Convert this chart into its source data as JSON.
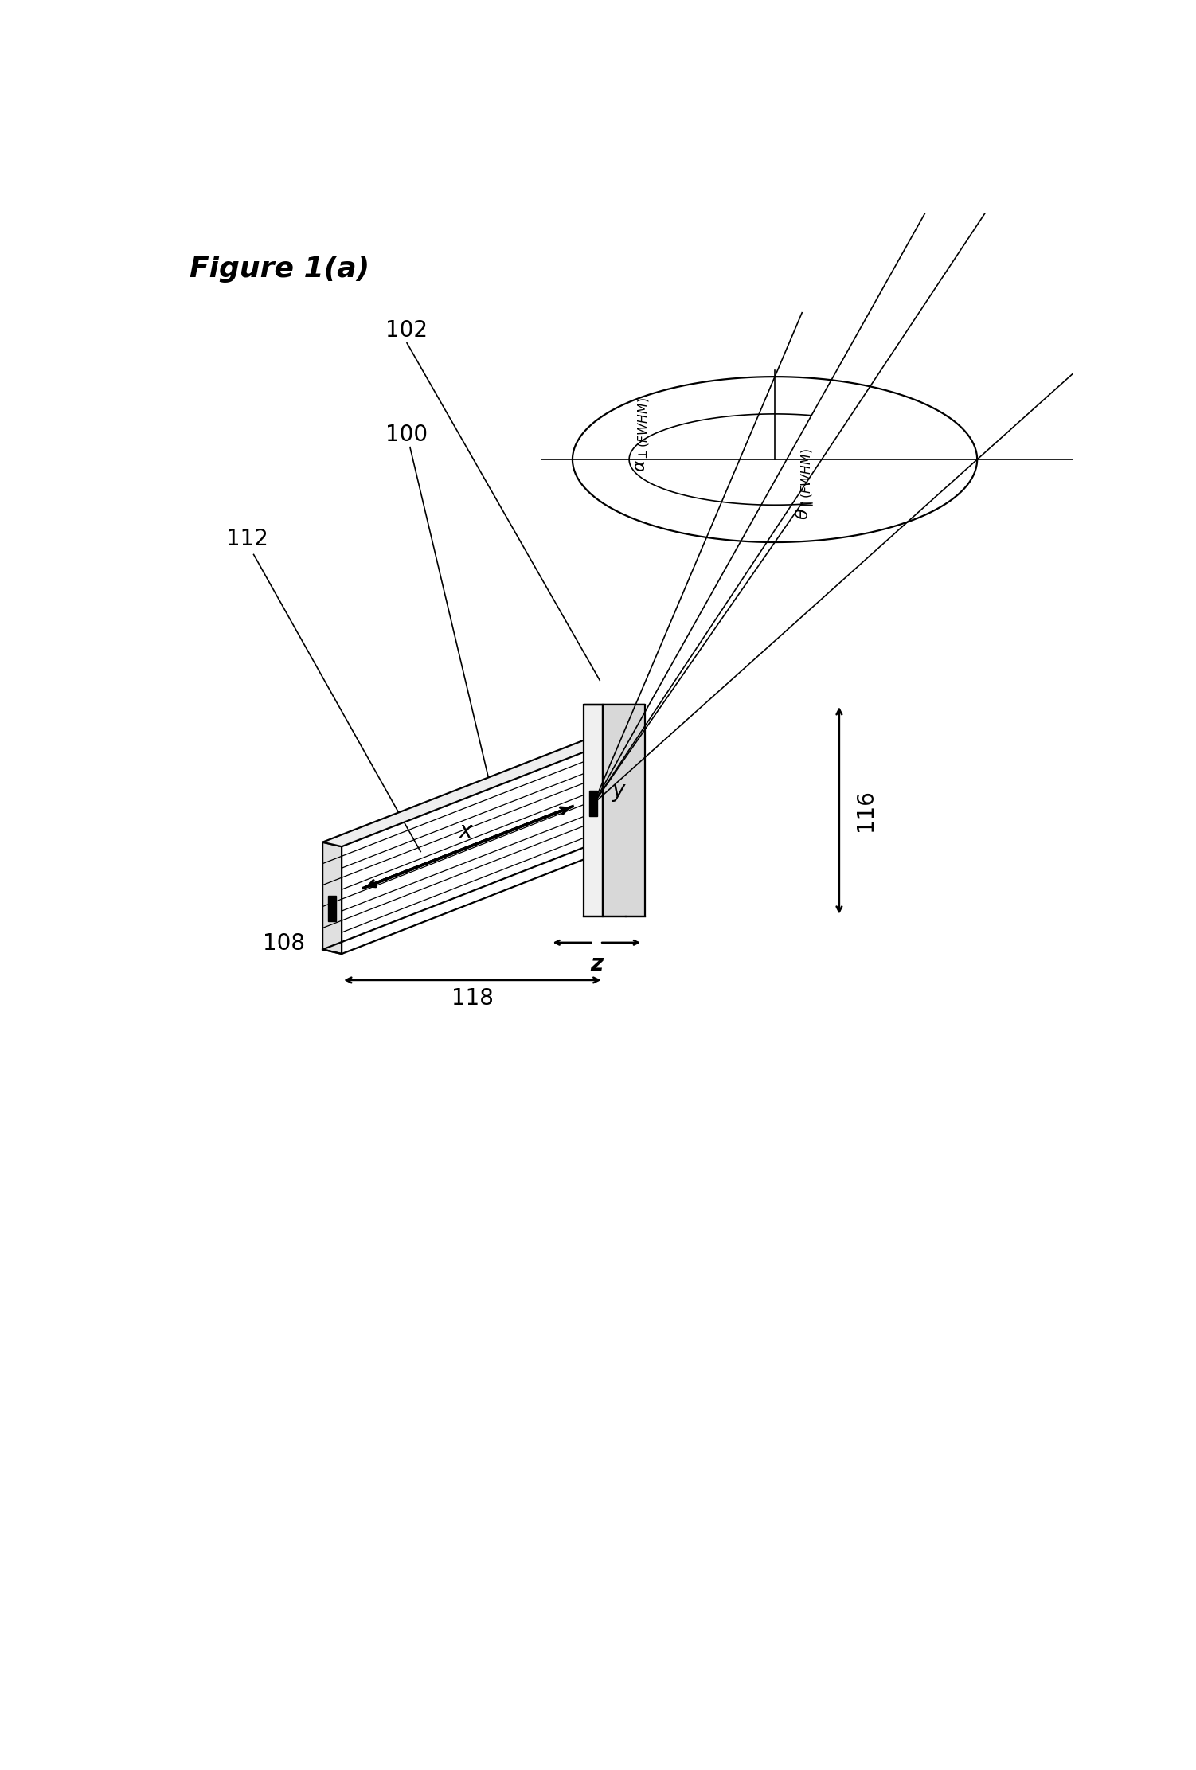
{
  "title": "Figure 1(a)",
  "bg_color": "#ffffff",
  "label_102": "102",
  "label_100": "100",
  "label_112": "112",
  "label_108": "108",
  "label_116": "116",
  "label_118": "118",
  "label_x": "x",
  "label_y": "y",
  "label_z": "z",
  "fig_width": 15.02,
  "fig_height": 22.23,
  "dpi": 100
}
